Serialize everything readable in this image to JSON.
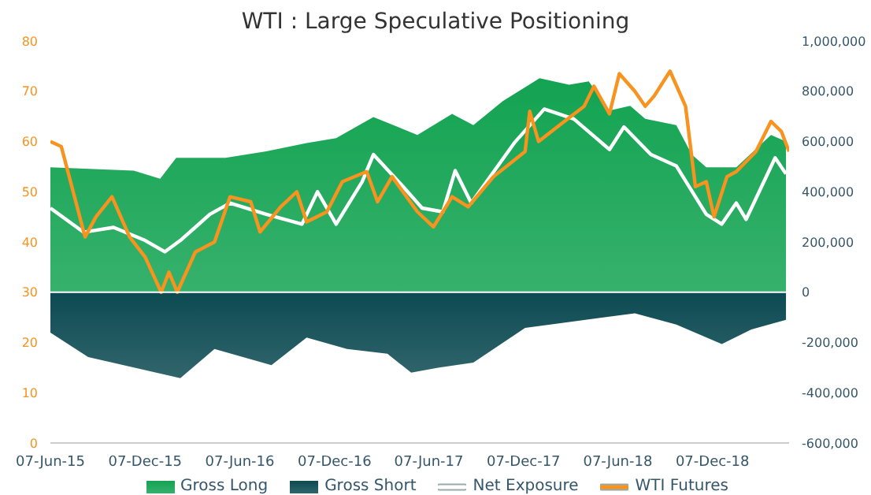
{
  "chart_data": {
    "type": "area",
    "title": "WTI : Large Speculative Positioning",
    "series": [
      {
        "name": "Gross Long",
        "axis": "y2",
        "color": "#13a352",
        "x": [
          "2015-06-07",
          "2015-11-15",
          "2016-01-05",
          "2016-02-05",
          "2016-05-10",
          "2016-07-28",
          "2016-10-14",
          "2016-12-10",
          "2017-02-20",
          "2017-05-16",
          "2017-07-22",
          "2017-09-01",
          "2017-10-28",
          "2018-01-07",
          "2018-03-05",
          "2018-04-12",
          "2018-05-22",
          "2018-07-01",
          "2018-07-30",
          "2018-09-28",
          "2018-10-28",
          "2018-11-25",
          "2019-01-22",
          "2019-03-30",
          "2019-04-28"
        ],
        "values": [
          497000,
          484000,
          452000,
          535000,
          535000,
          561000,
          594000,
          613000,
          697000,
          626000,
          710000,
          665000,
          761000,
          852000,
          826000,
          839000,
          723000,
          742000,
          690000,
          665000,
          548000,
          497000,
          497000,
          626000,
          600000
        ]
      },
      {
        "name": "Gross Short",
        "axis": "y2",
        "color": "#0d4a52",
        "x": [
          "2015-06-07",
          "2015-08-19",
          "2016-02-13",
          "2016-04-19",
          "2016-08-07",
          "2016-10-14",
          "2016-12-31",
          "2017-03-19",
          "2017-05-04",
          "2017-06-25",
          "2017-09-01",
          "2017-12-10",
          "2018-03-14",
          "2018-07-10",
          "2018-09-28",
          "2018-12-25",
          "2019-02-20",
          "2019-04-28"
        ],
        "values": [
          -161000,
          -258000,
          -342000,
          -226000,
          -290000,
          -180000,
          -226000,
          -245000,
          -320000,
          -300000,
          -280000,
          -142000,
          -116000,
          -84000,
          -129000,
          -206000,
          -148000,
          -110000
        ]
      },
      {
        "name": "Net Exposure",
        "type": "line",
        "axis": "y2",
        "color": "#ffffff",
        "x": [
          "2015-06-07",
          "2015-08-10",
          "2015-10-07",
          "2015-12-07",
          "2016-01-14",
          "2016-02-13",
          "2016-04-10",
          "2016-05-19",
          "2016-07-28",
          "2016-10-05",
          "2016-11-04",
          "2016-12-10",
          "2017-01-29",
          "2017-02-20",
          "2017-04-19",
          "2017-05-25",
          "2017-07-04",
          "2017-07-28",
          "2017-08-28",
          "2017-11-19",
          "2018-01-16",
          "2018-03-14",
          "2018-05-22",
          "2018-06-19",
          "2018-08-10",
          "2018-09-28",
          "2018-11-25",
          "2018-12-25",
          "2019-01-22",
          "2019-02-10",
          "2019-04-07",
          "2019-04-28"
        ],
        "values": [
          335000,
          239000,
          258000,
          206000,
          161000,
          206000,
          310000,
          355000,
          310000,
          271000,
          400000,
          271000,
          439000,
          548000,
          419000,
          335000,
          320000,
          484000,
          355000,
          594000,
          729000,
          690000,
          568000,
          658000,
          548000,
          503000,
          310000,
          271000,
          355000,
          290000,
          535000,
          471000
        ]
      },
      {
        "name": "WTI Futures",
        "type": "line",
        "axis": "y",
        "color": "#f7931e",
        "x": [
          "2015-06-07",
          "2015-06-28",
          "2015-08-13",
          "2015-09-03",
          "2015-10-04",
          "2015-11-07",
          "2015-12-07",
          "2016-01-07",
          "2016-01-22",
          "2016-02-07",
          "2016-03-13",
          "2016-04-19",
          "2016-05-19",
          "2016-06-28",
          "2016-07-16",
          "2016-08-25",
          "2016-09-25",
          "2016-10-14",
          "2016-11-22",
          "2016-12-22",
          "2017-02-07",
          "2017-02-28",
          "2017-03-28",
          "2017-05-16",
          "2017-06-16",
          "2017-07-22",
          "2017-08-22",
          "2017-10-10",
          "2017-12-10",
          "2017-12-19",
          "2018-01-05",
          "2018-02-24",
          "2018-04-03",
          "2018-04-22",
          "2018-05-22",
          "2018-06-10",
          "2018-07-10",
          "2018-07-30",
          "2018-08-16",
          "2018-09-16",
          "2018-10-16",
          "2018-11-04",
          "2018-11-25",
          "2018-12-10",
          "2019-01-04",
          "2019-01-22",
          "2019-03-01",
          "2019-03-30",
          "2019-04-19",
          "2019-05-04"
        ],
        "values": [
          60,
          59,
          41,
          45,
          49,
          41,
          37,
          30,
          34,
          30,
          38,
          40,
          49,
          48,
          42,
          47,
          50,
          44,
          46,
          52,
          54,
          48,
          53,
          46,
          43,
          49,
          47,
          53,
          58,
          66,
          60,
          64,
          67,
          71,
          65.5,
          73.5,
          70,
          67,
          69,
          74,
          67,
          51,
          52,
          45,
          53,
          54,
          58,
          64,
          62,
          58
        ]
      }
    ],
    "xlim": [
      "2015-06-07",
      "2019-05-04"
    ],
    "xticks": [
      {
        "value": "2015-06-07",
        "label": "07-Jun-15"
      },
      {
        "value": "2015-12-07",
        "label": "07-Dec-15"
      },
      {
        "value": "2016-06-07",
        "label": "07-Jun-16"
      },
      {
        "value": "2016-12-07",
        "label": "07-Dec-16"
      },
      {
        "value": "2017-06-07",
        "label": "07-Jun-17"
      },
      {
        "value": "2017-12-07",
        "label": "07-Dec-17"
      },
      {
        "value": "2018-06-07",
        "label": "07-Jun-18"
      },
      {
        "value": "2018-12-07",
        "label": "07-Dec-18"
      }
    ],
    "ylim": [
      0,
      80
    ],
    "yticks": [
      0,
      10,
      20,
      30,
      40,
      50,
      60,
      70,
      80
    ],
    "y2lim": [
      -600000,
      1000000
    ],
    "y2ticks": [
      {
        "value": -600000,
        "label": "-600,000"
      },
      {
        "value": -400000,
        "label": "-400,000"
      },
      {
        "value": -200000,
        "label": "-200,000"
      },
      {
        "value": 0,
        "label": "0"
      },
      {
        "value": 200000,
        "label": "200,000"
      },
      {
        "value": 400000,
        "label": "400,000"
      },
      {
        "value": 600000,
        "label": "600,000"
      },
      {
        "value": 800000,
        "label": "800,000"
      },
      {
        "value": 1000000,
        "label": "1,000,000"
      }
    ],
    "ref_lines": [
      {
        "axis": "y2",
        "value": 0,
        "color": "#ffffff"
      }
    ],
    "grid": false,
    "legend": "bottom"
  }
}
